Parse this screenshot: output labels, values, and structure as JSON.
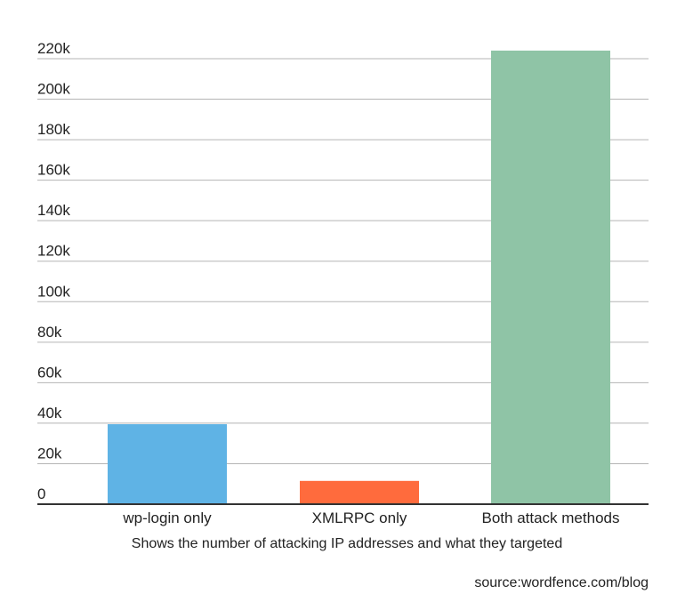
{
  "chart_data": {
    "type": "bar",
    "categories": [
      "wp-login only",
      "XMLRPC only",
      "Both attack methods"
    ],
    "values": [
      39500,
      11500,
      224000
    ],
    "colors": [
      "#5fb3e5",
      "#ff6b3d",
      "#8fc4a6"
    ],
    "xlabel": "Shows the number of attacking IP addresses and what they targeted",
    "ylabel": "",
    "ylim": [
      0,
      220000
    ],
    "yticks": [
      0,
      20000,
      40000,
      60000,
      80000,
      100000,
      120000,
      140000,
      160000,
      180000,
      200000,
      220000
    ],
    "ytick_labels": [
      "0",
      "20k",
      "40k",
      "60k",
      "80k",
      "100k",
      "120k",
      "140k",
      "160k",
      "180k",
      "200k",
      "220k"
    ],
    "grid": true,
    "gridline_color": "#b5b5b5",
    "axis_color": "#333333"
  },
  "source_text": "source:wordfence.com/blog"
}
